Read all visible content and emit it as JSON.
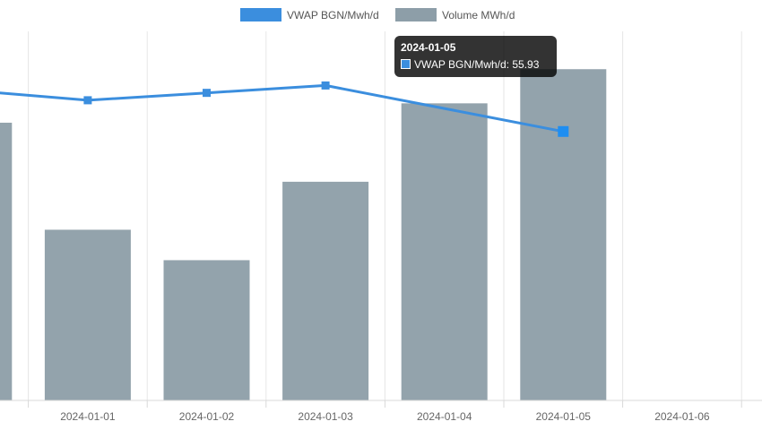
{
  "chart_data": {
    "type": "bar",
    "categories": [
      "",
      "2024-01-01",
      "2024-01-02",
      "2024-01-03",
      "2024-01-04",
      "2024-01-05",
      "2024-01-06"
    ],
    "series": [
      {
        "name": "VWAP BGN/Mwh/d",
        "type": "line",
        "color": "#3b8ede",
        "axis": "right",
        "values": [
          57.6,
          57.2,
          57.5,
          57.8,
          null,
          55.93,
          null
        ]
      },
      {
        "name": "Volume MWh/d",
        "type": "bar",
        "color": "#8d9ea8",
        "axis": "left",
        "values": [
          301,
          185,
          152,
          237,
          322,
          359,
          null
        ]
      }
    ],
    "left_ylim": [
      0,
      400
    ],
    "right_ylim": [
      45,
      60
    ],
    "grid": true,
    "legend_position": "top-center",
    "tooltip": {
      "title": "2024-01-05",
      "series": "VWAP BGN/Mwh/d",
      "value": "55.93",
      "text": "VWAP BGN/Mwh/d: 55.93",
      "color": "#3b8ede"
    }
  }
}
